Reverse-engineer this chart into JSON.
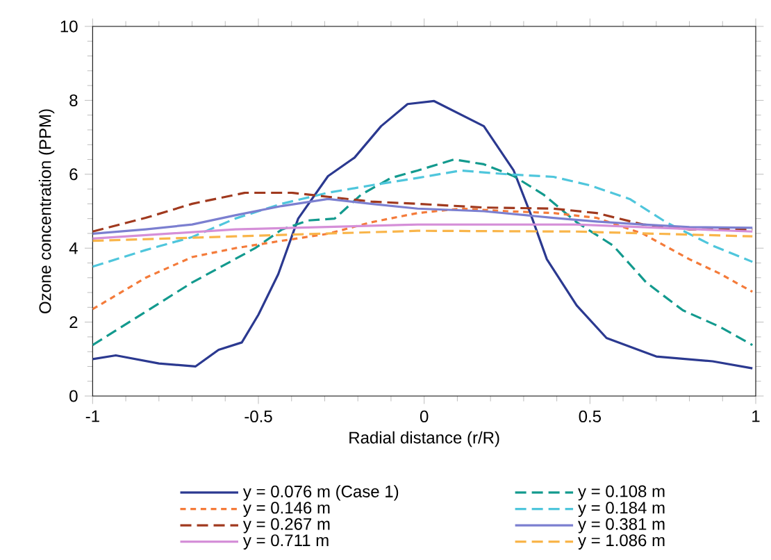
{
  "chart_data": {
    "type": "line",
    "xlabel": "Radial distance (r/R)",
    "ylabel": "Ozone concentration (PPM)",
    "xlim": [
      -1,
      1
    ],
    "ylim": [
      0,
      10
    ],
    "xticks": [
      -1,
      -0.5,
      0,
      0.5,
      1
    ],
    "yticks": [
      0,
      2,
      4,
      6,
      8,
      10
    ],
    "legend": "bottom",
    "grid": false,
    "marker": "none",
    "series": [
      {
        "name": "y = 0.076 m (Case 1)",
        "color": "#2b3990",
        "line_style": "solid",
        "x": [
          -1,
          -0.93,
          -0.8,
          -0.69,
          -0.62,
          -0.55,
          -0.5,
          -0.44,
          -0.38,
          -0.29,
          -0.21,
          -0.13,
          -0.05,
          0.03,
          0.18,
          0.27,
          0.32,
          0.37,
          0.46,
          0.55,
          0.7,
          0.87,
          0.99
        ],
        "values": [
          1.0,
          1.1,
          0.88,
          0.8,
          1.25,
          1.45,
          2.2,
          3.3,
          4.8,
          5.95,
          6.45,
          7.3,
          7.9,
          7.98,
          7.3,
          6.1,
          4.95,
          3.7,
          2.45,
          1.57,
          1.07,
          0.94,
          0.75
        ]
      },
      {
        "name": "y = 0.108 m",
        "color": "#139a8e",
        "line_style": "dashed",
        "x": [
          -1,
          -0.7,
          -0.51,
          -0.43,
          -0.35,
          -0.27,
          -0.19,
          -0.1,
          -0.02,
          0.09,
          0.18,
          0.27,
          0.36,
          0.46,
          0.57,
          0.67,
          0.78,
          0.89,
          0.99
        ],
        "values": [
          1.38,
          3.07,
          4.0,
          4.5,
          4.75,
          4.8,
          5.45,
          5.9,
          6.1,
          6.4,
          6.27,
          5.95,
          5.45,
          4.7,
          4.07,
          3.07,
          2.32,
          1.88,
          1.38
        ]
      },
      {
        "name": "y = 0.146 m",
        "color": "#f47b3a",
        "line_style": "dotted",
        "x": [
          -1,
          -0.84,
          -0.7,
          -0.57,
          -0.43,
          -0.29,
          -0.16,
          -0.02,
          0.11,
          0.25,
          0.39,
          0.52,
          0.66,
          0.8,
          0.89,
          0.99
        ],
        "values": [
          2.35,
          3.2,
          3.76,
          4.0,
          4.2,
          4.39,
          4.7,
          4.95,
          5.07,
          5.0,
          4.95,
          4.82,
          4.39,
          3.7,
          3.32,
          2.82
        ]
      },
      {
        "name": "y = 0.184 m",
        "color": "#4fc6dc",
        "line_style": "dashed",
        "x": [
          -1,
          -0.84,
          -0.7,
          -0.57,
          -0.43,
          -0.29,
          -0.16,
          -0.02,
          0.11,
          0.25,
          0.39,
          0.5,
          0.62,
          0.73,
          0.87,
          0.99
        ],
        "values": [
          3.5,
          3.95,
          4.3,
          4.8,
          5.2,
          5.5,
          5.7,
          5.9,
          6.1,
          6.0,
          5.93,
          5.7,
          5.33,
          4.7,
          4.07,
          3.63
        ]
      },
      {
        "name": "y = 0.267 m",
        "color": "#a0391e",
        "line_style": "dashed",
        "x": [
          -1,
          -0.84,
          -0.7,
          -0.54,
          -0.4,
          -0.29,
          -0.16,
          -0.02,
          0.18,
          0.39,
          0.52,
          0.66,
          0.8,
          0.99
        ],
        "values": [
          4.45,
          4.82,
          5.2,
          5.5,
          5.5,
          5.39,
          5.26,
          5.2,
          5.1,
          5.07,
          4.95,
          4.64,
          4.51,
          4.51
        ]
      },
      {
        "name": "y = 0.381 m",
        "color": "#7b7fd0",
        "line_style": "solid",
        "x": [
          -1,
          -0.84,
          -0.7,
          -0.57,
          -0.43,
          -0.29,
          -0.16,
          -0.02,
          0.18,
          0.39,
          0.52,
          0.66,
          0.8,
          0.99
        ],
        "values": [
          4.39,
          4.51,
          4.64,
          4.89,
          5.14,
          5.33,
          5.2,
          5.07,
          5.0,
          4.82,
          4.72,
          4.64,
          4.57,
          4.55
        ]
      },
      {
        "name": "y = 0.711 m",
        "color": "#d58fd8",
        "line_style": "solid",
        "x": [
          -1,
          -0.57,
          -0.02,
          0.46,
          0.99
        ],
        "values": [
          4.26,
          4.51,
          4.64,
          4.64,
          4.45
        ]
      },
      {
        "name": "y = 1.086 m",
        "color": "#f9b54a",
        "line_style": "dashed",
        "x": [
          -1,
          -0.57,
          -0.02,
          0.46,
          0.99
        ],
        "values": [
          4.2,
          4.32,
          4.47,
          4.45,
          4.32
        ]
      }
    ]
  }
}
